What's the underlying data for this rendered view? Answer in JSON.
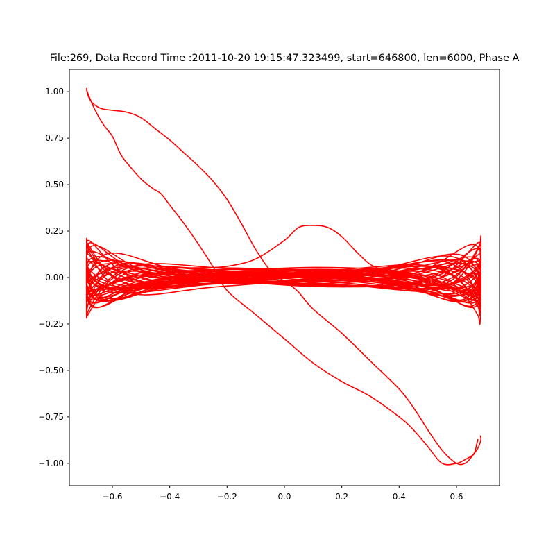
{
  "chart_data": {
    "type": "line",
    "title": "File:269, Data Record Time :2011-10-20 19:15:47.323499, start=646800, len=6000, Phase A",
    "xlabel": "",
    "ylabel": "",
    "xlim": [
      -0.75,
      0.75
    ],
    "ylim": [
      -1.12,
      1.12
    ],
    "xticks": [
      -0.6,
      -0.4,
      -0.2,
      0.0,
      0.2,
      0.4,
      0.6
    ],
    "xtick_labels": [
      "−0.6",
      "−0.4",
      "−0.2",
      "0.0",
      "0.2",
      "0.4",
      "0.6"
    ],
    "yticks": [
      1.0,
      0.75,
      0.5,
      0.25,
      0.0,
      -0.25,
      -0.5,
      -0.75,
      -1.0
    ],
    "ytick_labels": [
      "1.00",
      "0.75",
      "0.50",
      "0.25",
      "0.00",
      "−0.25",
      "−0.50",
      "−0.75",
      "−1.00"
    ],
    "grid": false,
    "line_color": "#ff0000",
    "series": [
      {
        "name": "",
        "x": [
          -0.69,
          -0.685,
          -0.67,
          -0.64,
          -0.6,
          -0.55,
          -0.5,
          -0.45,
          -0.4,
          -0.35,
          -0.3,
          -0.25,
          -0.2,
          -0.15,
          -0.1,
          -0.05,
          0.0,
          0.02,
          0.05,
          0.1,
          0.2,
          0.3,
          0.4,
          0.45,
          0.5,
          0.55,
          0.6,
          0.63,
          0.65,
          0.67,
          0.68,
          0.685,
          0.683
        ],
        "y": [
          1.02,
          0.98,
          0.94,
          0.91,
          0.9,
          0.89,
          0.86,
          0.8,
          0.74,
          0.67,
          0.6,
          0.52,
          0.42,
          0.29,
          0.15,
          0.04,
          -0.02,
          -0.04,
          -0.08,
          -0.17,
          -0.3,
          -0.45,
          -0.6,
          -0.7,
          -0.82,
          -0.93,
          -1.0,
          -1.0,
          -0.97,
          -0.93,
          -0.9,
          -0.87,
          -0.85
        ]
      },
      {
        "name": "",
        "x": [
          -0.69,
          -0.68,
          -0.66,
          -0.63,
          -0.6,
          -0.57,
          -0.54,
          -0.5,
          -0.46,
          -0.43,
          -0.4,
          -0.35,
          -0.3,
          -0.25,
          -0.2,
          -0.1,
          0.0,
          0.1,
          0.2,
          0.3,
          0.4,
          0.45,
          0.5,
          0.55,
          0.6,
          0.63,
          0.66,
          0.67,
          0.675
        ],
        "y": [
          1.01,
          0.97,
          0.9,
          0.82,
          0.76,
          0.66,
          0.6,
          0.53,
          0.48,
          0.45,
          0.39,
          0.29,
          0.18,
          0.06,
          -0.07,
          -0.2,
          -0.33,
          -0.46,
          -0.56,
          -0.64,
          -0.75,
          -0.82,
          -0.91,
          -1.0,
          -1.0,
          -0.98,
          -0.95,
          -0.9,
          -0.87
        ]
      },
      {
        "name": "",
        "x": [
          -0.3,
          -0.2,
          -0.1,
          0.0,
          0.05,
          0.1,
          0.15,
          0.2,
          0.25,
          0.3,
          0.35,
          0.4,
          0.45
        ],
        "y": [
          0.05,
          0.06,
          0.1,
          0.2,
          0.27,
          0.28,
          0.27,
          0.22,
          0.14,
          0.07,
          0.04,
          0.03,
          0.02
        ]
      }
    ],
    "band": {
      "x_range": [
        -0.69,
        0.685
      ],
      "cycles": 26,
      "center_amplitude": 0.03,
      "edge_amplitude_max": 0.18,
      "edge_amplitude_min": 0.03
    }
  }
}
